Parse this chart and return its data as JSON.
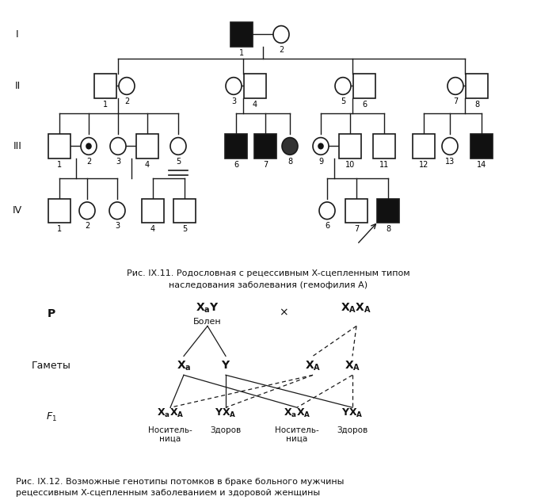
{
  "line_color": "#1a1a1a",
  "fig_caption1": "Рис. IX.11. Родословная с рецессивным X-сцепленным типом",
  "fig_caption1b": "наследования заболевания (гемофилия А)",
  "fig_caption2": "Рис. IX.12. Возможные генотипы потомков в браке больного мужчины",
  "fig_caption2b": "рецессивным X-сцепленным заболеванием и здоровой женщины",
  "label_P": "Р",
  "label_gametes": "Гаметы",
  "label_bolen": "Болен",
  "label_zdorov": "Здоров",
  "label_nositelnitza": "Носитель-\nница"
}
